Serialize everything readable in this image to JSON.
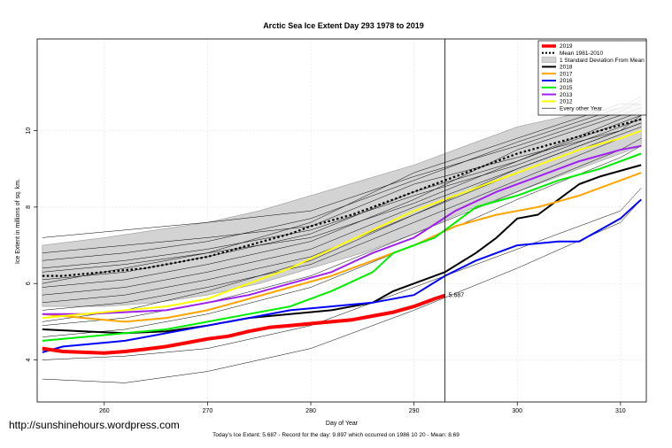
{
  "header": {
    "title": "Arctic Sea Ice Extent Day 293 1978 to 2019"
  },
  "footer": {
    "url": "http://sunshinehours.wordpress.com",
    "summary": "Today's Ice Extent: 5.687  - Record for the day: 9.897 which occurred on 1986 10 20  - Mean: 8.69"
  },
  "chart_data": {
    "type": "line",
    "title": "Arctic Sea Ice Extent Day 293 1978 to 2019",
    "xlabel": "Day of Year",
    "ylabel": "Ice Extent in millions of sq. km.",
    "xlim": [
      253.5,
      312.5
    ],
    "ylim": [
      2.9,
      12.4
    ],
    "x_ticks": [
      260,
      270,
      280,
      290,
      300,
      310
    ],
    "y_ticks": [
      4,
      6,
      8,
      10
    ],
    "grid": true,
    "legend_position": "top-right",
    "marker_day": 293,
    "annotation": {
      "x": 293,
      "y": 5.687,
      "text": "5.687"
    },
    "legend": [
      {
        "label": "2019",
        "color": "#ff0000",
        "style": "solid"
      },
      {
        "label": "Mean 1981-2010",
        "color": "#000000",
        "style": "dotted"
      },
      {
        "label": "1 Standard Deviation From Mean",
        "color": "#d3d3d3",
        "style": "band"
      },
      {
        "label": "2018",
        "color": "#000000",
        "style": "solid"
      },
      {
        "label": "2017",
        "color": "#ffa500",
        "style": "solid"
      },
      {
        "label": "2016",
        "color": "#0000ff",
        "style": "solid"
      },
      {
        "label": "2015",
        "color": "#00ee00",
        "style": "solid"
      },
      {
        "label": "2013",
        "color": "#a020f0",
        "style": "solid"
      },
      {
        "label": "2012",
        "color": "#ffff00",
        "style": "solid"
      },
      {
        "label": "Every other Year",
        "color": "#000000",
        "style": "thin"
      }
    ],
    "band": {
      "x": [
        254,
        260,
        265,
        270,
        275,
        280,
        285,
        290,
        295,
        300,
        305,
        310,
        312
      ],
      "upper": [
        7.0,
        7.2,
        7.4,
        7.6,
        7.9,
        8.3,
        8.7,
        9.1,
        9.6,
        10.1,
        10.4,
        10.6,
        10.7
      ],
      "lower": [
        5.4,
        5.4,
        5.5,
        5.7,
        6.0,
        6.4,
        6.8,
        7.3,
        7.9,
        8.4,
        8.9,
        9.4,
        9.6
      ]
    },
    "mean": {
      "x": [
        254,
        256,
        258,
        260,
        262,
        264,
        266,
        268,
        270,
        272,
        274,
        276,
        278,
        280,
        282,
        284,
        286,
        288,
        290,
        292,
        294,
        296,
        298,
        300,
        302,
        304,
        306,
        308,
        310,
        312
      ],
      "y": [
        6.2,
        6.2,
        6.25,
        6.3,
        6.35,
        6.4,
        6.5,
        6.6,
        6.7,
        6.85,
        7.0,
        7.15,
        7.3,
        7.5,
        7.65,
        7.8,
        8.0,
        8.2,
        8.4,
        8.6,
        8.8,
        9.0,
        9.2,
        9.4,
        9.55,
        9.7,
        9.85,
        10.0,
        10.15,
        10.3
      ]
    },
    "series": [
      {
        "name": "2018",
        "color": "#000000",
        "width": 2,
        "x": [
          254,
          258,
          262,
          266,
          270,
          274,
          278,
          282,
          286,
          288,
          290,
          293,
          296,
          298,
          300,
          302,
          304,
          306,
          308,
          310,
          312
        ],
        "y": [
          4.8,
          4.75,
          4.7,
          4.75,
          4.9,
          5.1,
          5.2,
          5.3,
          5.5,
          5.8,
          6.0,
          6.3,
          6.8,
          7.2,
          7.7,
          7.8,
          8.2,
          8.6,
          8.8,
          8.95,
          9.1
        ]
      },
      {
        "name": "2017",
        "color": "#ffa500",
        "width": 2,
        "x": [
          254,
          258,
          262,
          266,
          270,
          274,
          278,
          282,
          286,
          290,
          294,
          298,
          302,
          306,
          310,
          312
        ],
        "y": [
          5.2,
          5.1,
          5.0,
          5.1,
          5.3,
          5.6,
          5.9,
          6.2,
          6.6,
          7.0,
          7.5,
          7.8,
          8.0,
          8.3,
          8.7,
          8.9
        ]
      },
      {
        "name": "2016",
        "color": "#0000ff",
        "width": 2,
        "x": [
          254,
          256,
          258,
          262,
          266,
          270,
          274,
          278,
          282,
          286,
          290,
          293,
          296,
          300,
          304,
          306,
          310,
          312
        ],
        "y": [
          4.2,
          4.35,
          4.4,
          4.5,
          4.7,
          4.9,
          5.1,
          5.3,
          5.4,
          5.5,
          5.7,
          6.2,
          6.6,
          7.0,
          7.1,
          7.1,
          7.7,
          8.2
        ]
      },
      {
        "name": "2015",
        "color": "#00ee00",
        "width": 2,
        "x": [
          254,
          258,
          262,
          266,
          270,
          274,
          278,
          282,
          286,
          288,
          290,
          292,
          294,
          296,
          300,
          304,
          308,
          312
        ],
        "y": [
          4.5,
          4.6,
          4.7,
          4.8,
          5.0,
          5.2,
          5.4,
          5.8,
          6.3,
          6.8,
          7.0,
          7.2,
          7.6,
          8.0,
          8.3,
          8.7,
          9.0,
          9.4
        ]
      },
      {
        "name": "2013",
        "color": "#a020f0",
        "width": 2,
        "x": [
          254,
          258,
          262,
          266,
          270,
          274,
          278,
          282,
          286,
          290,
          294,
          298,
          302,
          306,
          310,
          312
        ],
        "y": [
          5.2,
          5.2,
          5.25,
          5.3,
          5.5,
          5.7,
          6.0,
          6.3,
          6.8,
          7.2,
          7.9,
          8.4,
          8.8,
          9.2,
          9.5,
          9.6
        ]
      },
      {
        "name": "2012",
        "color": "#ffff00",
        "width": 2,
        "x": [
          254,
          258,
          262,
          266,
          270,
          274,
          278,
          282,
          286,
          290,
          294,
          298,
          302,
          306,
          310,
          312
        ],
        "y": [
          5.1,
          5.2,
          5.3,
          5.4,
          5.6,
          6.0,
          6.4,
          6.9,
          7.4,
          7.9,
          8.3,
          8.7,
          9.1,
          9.5,
          9.8,
          10.0
        ]
      },
      {
        "name": "2019",
        "color": "#ff0000",
        "width": 4,
        "x": [
          254,
          256,
          258,
          260,
          262,
          264,
          266,
          268,
          270,
          272,
          274,
          276,
          278,
          280,
          282,
          284,
          286,
          288,
          290,
          292,
          293
        ],
        "y": [
          4.3,
          4.22,
          4.2,
          4.18,
          4.22,
          4.28,
          4.35,
          4.45,
          4.55,
          4.62,
          4.75,
          4.85,
          4.9,
          4.95,
          5.0,
          5.05,
          5.15,
          5.25,
          5.4,
          5.6,
          5.687
        ]
      }
    ],
    "other_years": [
      {
        "x": [
          254,
          262,
          270,
          280,
          290,
          300,
          310,
          312
        ],
        "y": [
          6.8,
          7.0,
          7.2,
          7.5,
          8.6,
          9.3,
          10.0,
          10.2
        ]
      },
      {
        "x": [
          254,
          262,
          270,
          280,
          290,
          300,
          310,
          312
        ],
        "y": [
          6.4,
          6.6,
          6.9,
          7.4,
          8.3,
          9.1,
          10.1,
          10.3
        ]
      },
      {
        "x": [
          254,
          262,
          270,
          280,
          290,
          300,
          310,
          312
        ],
        "y": [
          6.1,
          6.3,
          6.7,
          7.3,
          8.4,
          9.2,
          10.3,
          10.5
        ]
      },
      {
        "x": [
          254,
          262,
          270,
          280,
          290,
          300,
          310,
          312
        ],
        "y": [
          5.9,
          6.1,
          6.5,
          7.1,
          8.2,
          9.5,
          10.4,
          10.6
        ]
      },
      {
        "x": [
          254,
          262,
          270,
          280,
          290,
          300,
          310,
          312
        ],
        "y": [
          5.7,
          5.9,
          6.3,
          6.9,
          8.0,
          9.0,
          10.0,
          10.4
        ]
      },
      {
        "x": [
          254,
          262,
          270,
          280,
          290,
          300,
          310,
          312
        ],
        "y": [
          7.2,
          7.4,
          7.6,
          7.9,
          8.8,
          9.6,
          10.5,
          10.8
        ]
      },
      {
        "x": [
          254,
          262,
          270,
          280,
          290,
          300,
          310,
          312
        ],
        "y": [
          6.6,
          6.8,
          7.1,
          7.7,
          8.7,
          9.7,
          10.6,
          10.9
        ]
      },
      {
        "x": [
          254,
          262,
          270,
          280,
          290,
          300,
          310,
          312
        ],
        "y": [
          5.5,
          5.7,
          6.1,
          6.7,
          7.8,
          8.9,
          9.9,
          10.1
        ]
      },
      {
        "x": [
          254,
          262,
          270,
          280,
          290,
          300,
          310,
          312
        ],
        "y": [
          5.3,
          5.5,
          5.9,
          6.5,
          7.6,
          8.7,
          9.8,
          10.0
        ]
      },
      {
        "x": [
          254,
          262,
          270,
          280,
          290,
          300,
          310,
          312
        ],
        "y": [
          6.0,
          6.4,
          6.8,
          7.6,
          8.9,
          9.8,
          10.7,
          10.7
        ]
      },
      {
        "x": [
          254,
          262,
          270,
          280,
          290,
          300,
          310,
          312
        ],
        "y": [
          4.9,
          5.1,
          5.5,
          6.2,
          7.3,
          8.4,
          9.5,
          9.8
        ]
      },
      {
        "x": [
          254,
          262,
          270,
          280,
          290,
          300,
          310,
          312
        ],
        "y": [
          4.6,
          4.8,
          5.2,
          5.9,
          7.0,
          8.2,
          9.3,
          9.6
        ]
      },
      {
        "x": [
          254,
          262,
          270,
          280,
          290,
          300,
          310,
          312
        ],
        "y": [
          3.5,
          3.4,
          3.7,
          4.3,
          5.3,
          6.4,
          7.6,
          8.2
        ]
      },
      {
        "x": [
          254,
          262,
          270,
          280,
          290,
          300,
          310,
          312
        ],
        "y": [
          4.0,
          4.1,
          4.3,
          4.9,
          5.9,
          6.9,
          7.9,
          8.5
        ]
      },
      {
        "x": [
          254,
          262,
          270,
          280,
          290,
          300,
          310,
          312
        ],
        "y": [
          5.0,
          5.3,
          5.8,
          6.6,
          7.8,
          9.0,
          10.0,
          10.2
        ]
      },
      {
        "x": [
          254,
          262,
          270,
          280,
          290,
          300,
          310,
          312
        ],
        "y": [
          6.3,
          6.5,
          6.8,
          7.2,
          8.1,
          9.2,
          10.2,
          10.4
        ]
      }
    ]
  }
}
